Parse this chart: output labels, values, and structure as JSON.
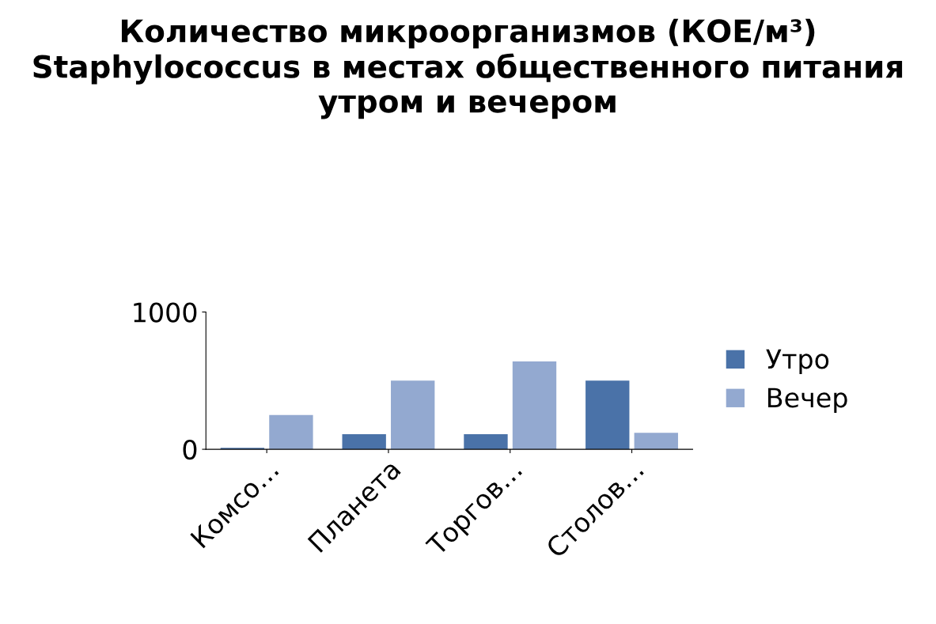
{
  "chart_data": {
    "type": "bar",
    "title": "Количество микроорганизмов (КОЕ/м³) Staphylococcus в местах общественного питания утром и вечером",
    "categories": [
      "Комсо…",
      "Планета",
      "Торгов…",
      "Столов…"
    ],
    "series": [
      {
        "name": "Утро",
        "color": "#4a72a8",
        "values": [
          10,
          110,
          110,
          500
        ]
      },
      {
        "name": "Вечер",
        "color": "#93a9d0",
        "values": [
          250,
          500,
          640,
          120
        ]
      }
    ],
    "ylim": [
      0,
      1000
    ],
    "yticks": [
      0,
      1000
    ],
    "grid": false,
    "legend": "right"
  }
}
